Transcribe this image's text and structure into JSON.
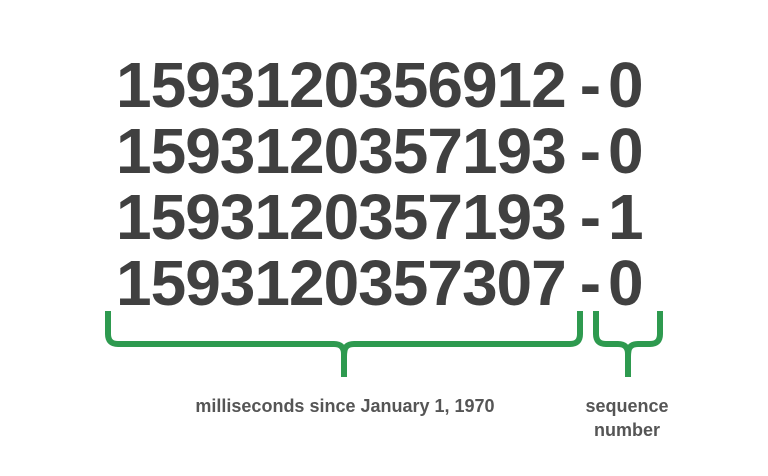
{
  "ids": [
    {
      "timestamp": "1593120356912",
      "separator": "-",
      "sequence": "0"
    },
    {
      "timestamp": "1593120357193",
      "separator": "-",
      "sequence": "0"
    },
    {
      "timestamp": "1593120357193",
      "separator": "-",
      "sequence": "1"
    },
    {
      "timestamp": "1593120357307",
      "separator": "-",
      "sequence": "0"
    }
  ],
  "labels": {
    "timestamp_label": "milliseconds since January 1, 1970",
    "sequence_label_line1": "sequence",
    "sequence_label_line2": "number"
  },
  "colors": {
    "brace": "#2e9a4f",
    "id_text": "#404040",
    "label_text": "#555555"
  }
}
